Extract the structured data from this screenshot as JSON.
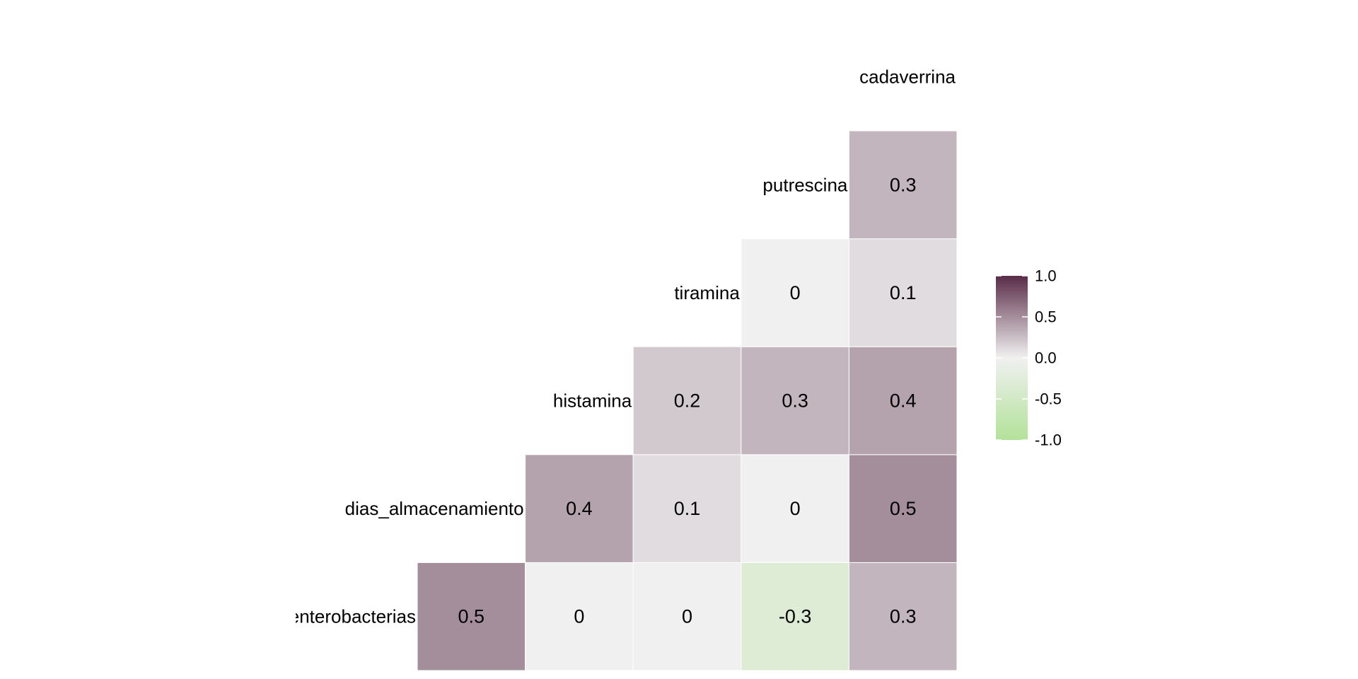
{
  "chart_data": {
    "type": "heatmap",
    "subtype": "correlation-lower-triangle",
    "title": "",
    "variables": [
      "enterobacterias",
      "dias_almacenamiento",
      "histamina",
      "tiramina",
      "putrescina",
      "cadaverrina"
    ],
    "cells": [
      {
        "row": "enterobacterias",
        "col": "dias_almacenamiento",
        "value": 0.5,
        "label": "0.5"
      },
      {
        "row": "enterobacterias",
        "col": "histamina",
        "value": 0,
        "label": "0"
      },
      {
        "row": "enterobacterias",
        "col": "tiramina",
        "value": 0,
        "label": "0"
      },
      {
        "row": "enterobacterias",
        "col": "putrescina",
        "value": -0.3,
        "label": "-0.3"
      },
      {
        "row": "enterobacterias",
        "col": "cadaverrina",
        "value": 0.3,
        "label": "0.3"
      },
      {
        "row": "dias_almacenamiento",
        "col": "histamina",
        "value": 0.4,
        "label": "0.4"
      },
      {
        "row": "dias_almacenamiento",
        "col": "tiramina",
        "value": 0.1,
        "label": "0.1"
      },
      {
        "row": "dias_almacenamiento",
        "col": "putrescina",
        "value": 0,
        "label": "0"
      },
      {
        "row": "dias_almacenamiento",
        "col": "cadaverrina",
        "value": 0.5,
        "label": "0.5"
      },
      {
        "row": "histamina",
        "col": "tiramina",
        "value": 0.2,
        "label": "0.2"
      },
      {
        "row": "histamina",
        "col": "putrescina",
        "value": 0.3,
        "label": "0.3"
      },
      {
        "row": "histamina",
        "col": "cadaverrina",
        "value": 0.4,
        "label": "0.4"
      },
      {
        "row": "tiramina",
        "col": "putrescina",
        "value": 0,
        "label": "0"
      },
      {
        "row": "tiramina",
        "col": "cadaverrina",
        "value": 0.1,
        "label": "0.1"
      },
      {
        "row": "putrescina",
        "col": "cadaverrina",
        "value": 0.3,
        "label": "0.3"
      }
    ],
    "color_scale": {
      "low": "#b3e29a",
      "mid": "#f0f0f0",
      "high": "#5a2c48",
      "domain": [
        -1,
        0,
        1
      ]
    },
    "legend": {
      "position": "right",
      "ticks": [
        1.0,
        0.5,
        0.0,
        -0.5,
        -1.0
      ],
      "tick_labels": [
        "1.0",
        "0.5",
        "0.0",
        "-0.5",
        "-1.0"
      ]
    },
    "grid": false
  }
}
